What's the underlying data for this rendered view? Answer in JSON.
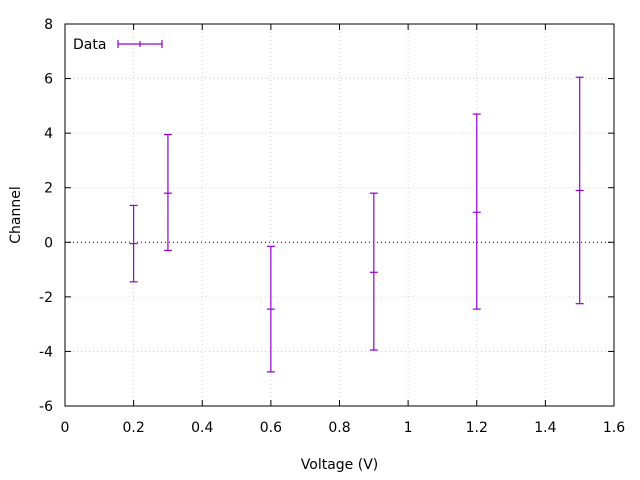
{
  "chart_data": {
    "type": "scatter",
    "xlabel": "Voltage (V)",
    "ylabel": "Channel",
    "xlim": [
      0,
      1.6
    ],
    "ylim": [
      -6,
      8
    ],
    "xticks": [
      0,
      0.2,
      0.4,
      0.6,
      0.8,
      1,
      1.2,
      1.4,
      1.6
    ],
    "xtick_labels": [
      "0",
      "0.2",
      "0.4",
      "0.6",
      "0.8",
      "1",
      "1.2",
      "1.4",
      "1.6"
    ],
    "yticks": [
      -6,
      -4,
      -2,
      0,
      2,
      4,
      6,
      8
    ],
    "ytick_labels": [
      "-6",
      "-4",
      "-2",
      "0",
      "2",
      "4",
      "6",
      "8"
    ],
    "grid": true,
    "zero_line": true,
    "legend": {
      "position": "top-left",
      "entries": [
        "Data"
      ]
    },
    "series": [
      {
        "name": "Data",
        "color": "#9400d3",
        "marker": "errorbar",
        "x": [
          0.2,
          0.3,
          0.6,
          0.9,
          1.2,
          1.5
        ],
        "y": [
          -0.05,
          1.8,
          -2.45,
          -1.1,
          1.1,
          1.9
        ],
        "ylow": [
          -1.45,
          -0.3,
          -4.75,
          -3.95,
          -2.45,
          -2.25
        ],
        "yhigh": [
          1.35,
          3.95,
          -0.15,
          1.8,
          4.7,
          6.05
        ]
      }
    ]
  }
}
